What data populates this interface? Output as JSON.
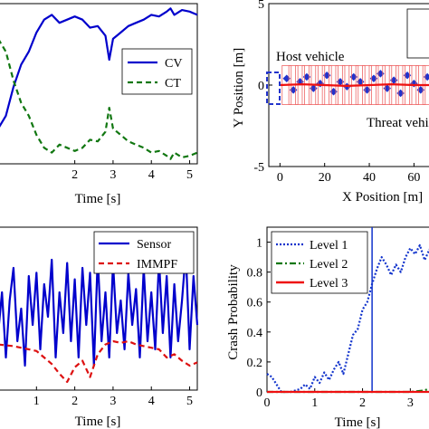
{
  "chart_data": [
    {
      "type": "line",
      "xlabel": "Time [s]",
      "ylabel": "",
      "xlim": [
        0,
        5.2
      ],
      "ylim": [
        0,
        1
      ],
      "xticks": [
        2,
        3,
        4,
        5
      ],
      "legend": "right",
      "series": [
        {
          "name": "CV",
          "color": "#0000cc",
          "style": "solid",
          "x": [
            0,
            0.2,
            0.4,
            0.6,
            0.8,
            1.0,
            1.2,
            1.4,
            1.6,
            1.8,
            2.0,
            2.2,
            2.4,
            2.6,
            2.8,
            2.9,
            3.0,
            3.2,
            3.4,
            3.6,
            3.8,
            4.0,
            4.2,
            4.4,
            4.5,
            4.6,
            4.8,
            5.0,
            5.1,
            5.2
          ],
          "y": [
            0.22,
            0.3,
            0.48,
            0.62,
            0.7,
            0.82,
            0.9,
            0.93,
            0.88,
            0.9,
            0.92,
            0.9,
            0.85,
            0.86,
            0.8,
            0.65,
            0.78,
            0.82,
            0.86,
            0.88,
            0.9,
            0.93,
            0.92,
            0.95,
            0.97,
            0.93,
            0.96,
            0.95,
            0.94,
            0.93
          ]
        },
        {
          "name": "CT",
          "color": "#117711",
          "style": "dashed",
          "x": [
            0,
            0.2,
            0.4,
            0.6,
            0.8,
            1.0,
            1.2,
            1.4,
            1.6,
            1.8,
            2.0,
            2.2,
            2.4,
            2.6,
            2.8,
            2.9,
            3.0,
            3.2,
            3.4,
            3.6,
            3.8,
            4.0,
            4.2,
            4.4,
            4.5,
            4.6,
            4.8,
            5.0,
            5.1,
            5.2
          ],
          "y": [
            0.78,
            0.7,
            0.52,
            0.38,
            0.3,
            0.18,
            0.1,
            0.07,
            0.12,
            0.1,
            0.08,
            0.1,
            0.15,
            0.14,
            0.2,
            0.35,
            0.22,
            0.18,
            0.14,
            0.12,
            0.1,
            0.07,
            0.08,
            0.05,
            0.03,
            0.07,
            0.04,
            0.05,
            0.06,
            0.07
          ]
        }
      ]
    },
    {
      "type": "scatter",
      "xlabel": "X Position [m]",
      "ylabel": "Y Position [m]",
      "xlim": [
        -5,
        72
      ],
      "ylim": [
        -5,
        5
      ],
      "xticks": [
        0,
        20,
        40,
        60
      ],
      "yticks": [
        -5,
        0,
        5
      ],
      "annotations": [
        "Host vehicle",
        "Threat vehi"
      ],
      "series": [
        {
          "name": "",
          "color": "#2233cc",
          "style": "markers",
          "x": [
            3,
            6,
            9,
            12,
            15,
            18,
            21,
            24,
            27,
            30,
            33,
            36,
            39,
            42,
            45,
            48,
            51,
            54,
            57,
            60,
            63,
            66,
            69
          ],
          "y": [
            0.4,
            -0.3,
            0.2,
            0.5,
            -0.2,
            0.1,
            0.6,
            -0.4,
            0.2,
            -0.1,
            0.5,
            0.2,
            -0.3,
            0.4,
            0.7,
            -0.2,
            0.3,
            -0.5,
            0.6,
            0.1,
            -0.3,
            0.5,
            0.8
          ]
        },
        {
          "name": "",
          "color": "#ee1111",
          "style": "solid",
          "x": [
            0,
            10,
            20,
            30,
            40,
            50,
            60,
            70
          ],
          "y": [
            0,
            0.05,
            0,
            -0.05,
            0,
            0.05,
            0,
            0
          ]
        }
      ]
    },
    {
      "type": "line",
      "xlabel": "Time [s]",
      "ylabel": "",
      "xlim": [
        0,
        5.2
      ],
      "ylim": [
        0,
        1
      ],
      "xticks": [
        1,
        2,
        3,
        4,
        5
      ],
      "legend": "top-right",
      "series": [
        {
          "name": "Sensor",
          "color": "#0000cc",
          "style": "solid",
          "x": [
            0,
            0.1,
            0.2,
            0.3,
            0.4,
            0.5,
            0.6,
            0.7,
            0.8,
            0.9,
            1.0,
            1.1,
            1.2,
            1.3,
            1.4,
            1.5,
            1.6,
            1.7,
            1.8,
            1.9,
            2.0,
            2.1,
            2.2,
            2.3,
            2.4,
            2.5,
            2.6,
            2.7,
            2.8,
            2.9,
            3.0,
            3.1,
            3.2,
            3.3,
            3.4,
            3.5,
            3.6,
            3.7,
            3.8,
            3.9,
            4.0,
            4.1,
            4.2,
            4.3,
            4.4,
            4.5,
            4.6,
            4.7,
            4.8,
            4.9,
            5.0,
            5.1,
            5.2
          ],
          "y": [
            0.35,
            0.6,
            0.2,
            0.55,
            0.75,
            0.3,
            0.5,
            0.15,
            0.7,
            0.4,
            0.72,
            0.25,
            0.65,
            0.45,
            0.8,
            0.2,
            0.6,
            0.35,
            0.78,
            0.3,
            0.68,
            0.2,
            0.75,
            0.4,
            0.72,
            0.15,
            0.82,
            0.3,
            0.6,
            0.2,
            0.78,
            0.35,
            0.55,
            0.25,
            0.72,
            0.4,
            0.62,
            0.2,
            0.75,
            0.3,
            0.6,
            0.25,
            0.8,
            0.35,
            0.7,
            0.2,
            0.65,
            0.3,
            0.55,
            0.85,
            0.25,
            0.7,
            0.4
          ]
        },
        {
          "name": "IMMPF",
          "color": "#dd1111",
          "style": "dashed",
          "x": [
            0,
            0.4,
            0.8,
            1.0,
            1.2,
            1.4,
            1.6,
            1.8,
            2.0,
            2.2,
            2.4,
            2.6,
            2.8,
            3.0,
            3.2,
            3.4,
            3.6,
            3.8,
            4.0,
            4.2,
            4.4,
            4.6,
            4.8,
            5.0,
            5.2
          ],
          "y": [
            0.28,
            0.27,
            0.25,
            0.24,
            0.2,
            0.16,
            0.1,
            0.05,
            0.14,
            0.18,
            0.08,
            0.22,
            0.28,
            0.3,
            0.29,
            0.3,
            0.28,
            0.27,
            0.26,
            0.25,
            0.2,
            0.22,
            0.18,
            0.15,
            0.17
          ]
        }
      ]
    },
    {
      "type": "line",
      "xlabel": "Time [s]",
      "ylabel": "Crash Probability",
      "xlim": [
        0,
        3.6
      ],
      "ylim": [
        0,
        1.1
      ],
      "xticks": [
        0,
        1,
        2,
        3
      ],
      "yticks": [
        0,
        0.2,
        0.4,
        0.6,
        0.8,
        1
      ],
      "legend": "top-right",
      "vline_x": 2.2,
      "series": [
        {
          "name": "Level 1",
          "color": "#1133cc",
          "style": "dotted",
          "x": [
            0,
            0.1,
            0.3,
            0.5,
            0.7,
            0.8,
            0.9,
            1.0,
            1.1,
            1.2,
            1.3,
            1.4,
            1.5,
            1.6,
            1.7,
            1.8,
            1.9,
            2.0,
            2.1,
            2.2,
            2.3,
            2.4,
            2.5,
            2.6,
            2.7,
            2.8,
            2.9,
            3.0,
            3.1,
            3.2,
            3.3,
            3.4,
            3.5,
            3.6
          ],
          "y": [
            0.12,
            0.1,
            0.0,
            0.0,
            0.02,
            0.05,
            0.02,
            0.1,
            0.06,
            0.13,
            0.08,
            0.15,
            0.2,
            0.12,
            0.25,
            0.38,
            0.42,
            0.55,
            0.6,
            0.72,
            0.82,
            0.9,
            0.85,
            0.78,
            0.85,
            0.8,
            0.9,
            0.96,
            0.92,
            0.98,
            0.88,
            0.95,
            0.92,
            0.9
          ]
        },
        {
          "name": "Level 2",
          "color": "#117711",
          "style": "dashdot",
          "x": [
            0,
            1,
            2,
            3,
            3.3,
            3.45,
            3.6
          ],
          "y": [
            0,
            0,
            0,
            0,
            0.01,
            0.03,
            0.05
          ]
        },
        {
          "name": "Level 3",
          "color": "#ee1111",
          "style": "solid",
          "x": [
            0,
            1,
            2,
            3,
            3.6
          ],
          "y": [
            0,
            0,
            0,
            0,
            0
          ]
        }
      ]
    }
  ]
}
